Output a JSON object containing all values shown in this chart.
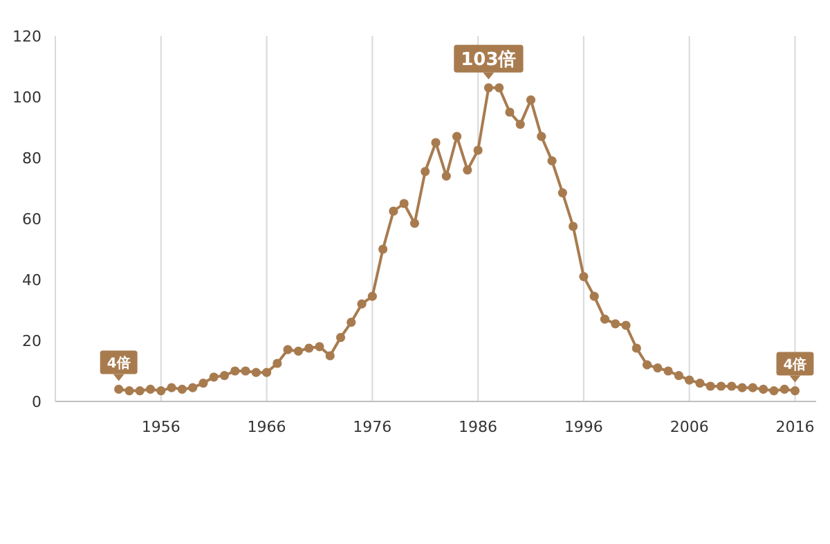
{
  "chart_data": {
    "type": "line",
    "x": [
      1952,
      1953,
      1954,
      1955,
      1956,
      1957,
      1958,
      1959,
      1960,
      1961,
      1962,
      1963,
      1964,
      1965,
      1966,
      1967,
      1968,
      1969,
      1970,
      1971,
      1972,
      1973,
      1974,
      1975,
      1976,
      1977,
      1978,
      1979,
      1980,
      1981,
      1982,
      1983,
      1984,
      1985,
      1986,
      1987,
      1988,
      1989,
      1990,
      1991,
      1992,
      1993,
      1994,
      1995,
      1996,
      1997,
      1998,
      1999,
      2000,
      2001,
      2002,
      2003,
      2004,
      2005,
      2006,
      2007,
      2008,
      2009,
      2010,
      2011,
      2012,
      2013,
      2014,
      2015,
      2016
    ],
    "values": [
      4,
      3.5,
      3.5,
      4,
      3.5,
      4.5,
      4,
      4.5,
      6,
      8,
      8.5,
      10,
      10,
      9.5,
      9.5,
      12.5,
      17,
      16.5,
      17.5,
      18,
      15,
      21,
      26,
      32,
      34.5,
      50,
      62.5,
      65,
      58.5,
      75.5,
      85,
      74,
      87,
      76,
      82.5,
      103,
      103,
      95,
      91,
      99,
      87,
      79,
      68.5,
      57.5,
      41,
      34.5,
      27,
      25.5,
      25,
      17.5,
      12,
      11,
      10,
      8.5,
      7,
      6,
      5,
      5,
      5,
      4.5,
      4.5,
      4,
      3.5,
      4,
      3.5
    ],
    "color": "#a87b4f",
    "marker": "circle",
    "xlim": [
      1946,
      2018
    ],
    "xticks": [
      1956,
      1966,
      1976,
      1986,
      1996,
      2006,
      2016
    ],
    "ylim": [
      0,
      120
    ],
    "yticks": [
      0,
      20,
      40,
      60,
      80,
      100,
      120
    ],
    "grid": "x",
    "annotations": [
      {
        "text": "4倍",
        "x": 1952,
        "y": 4
      },
      {
        "text": "103倍",
        "x": 1987,
        "y": 103
      },
      {
        "text": "4倍",
        "x": 2016,
        "y": 3.5
      }
    ]
  }
}
